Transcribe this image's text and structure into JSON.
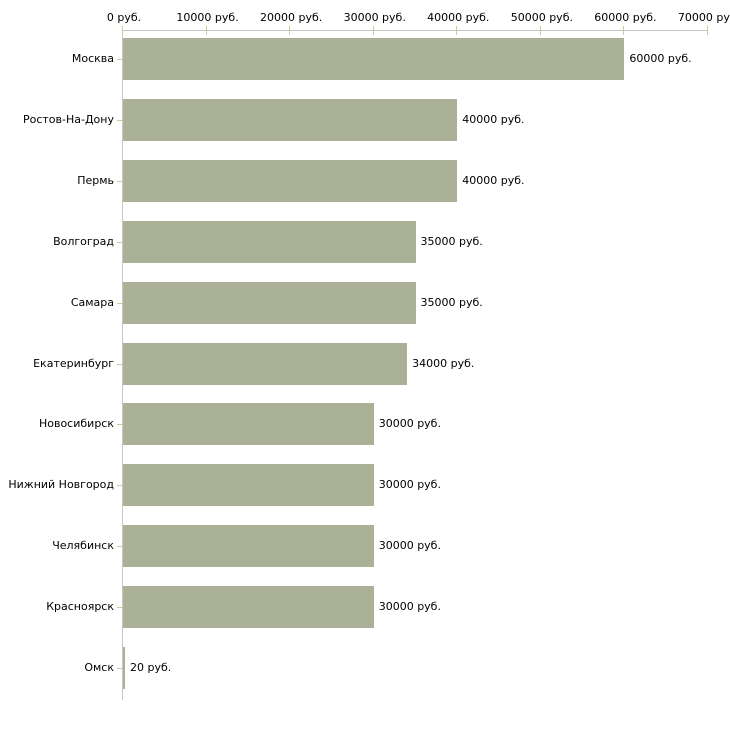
{
  "chart_data": {
    "type": "bar",
    "orientation": "horizontal",
    "title": "",
    "xlabel": "",
    "ylabel": "",
    "categories": [
      "Москва",
      "Ростов-На-Дону",
      "Пермь",
      "Волгоград",
      "Самара",
      "Екатеринбург",
      "Новосибирск",
      "Нижний Новгород",
      "Челябинск",
      "Красноярск",
      "Омск"
    ],
    "values": [
      60000,
      40000,
      40000,
      35000,
      35000,
      34000,
      30000,
      30000,
      30000,
      30000,
      20
    ],
    "value_labels": [
      "60000 руб.",
      "40000 руб.",
      "40000 руб.",
      "35000 руб.",
      "35000 руб.",
      "34000 руб.",
      "30000 руб.",
      "30000 руб.",
      "30000 руб.",
      "30000 руб.",
      "20 руб."
    ],
    "x_axis": {
      "position": "top",
      "min": 0,
      "max": 70000,
      "ticks": [
        0,
        10000,
        20000,
        30000,
        40000,
        50000,
        60000,
        70000
      ],
      "tick_labels": [
        "0 руб.",
        "10000 руб.",
        "20000 руб.",
        "30000 руб.",
        "40000 руб.",
        "50000 руб.",
        "60000 руб.",
        "70000 руб."
      ]
    },
    "grid": false,
    "legend": false,
    "colors": {
      "bar": "#abb196",
      "axis_line": "#c6c6c6",
      "tick_mark": "#c9c99e",
      "text": "#000000",
      "background": "#ffffff"
    }
  }
}
